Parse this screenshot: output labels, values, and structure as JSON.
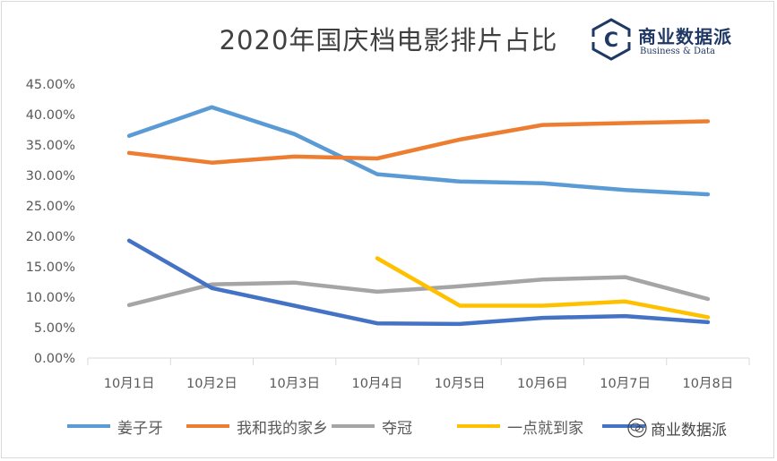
{
  "chart_data": {
    "type": "line",
    "title": "2020年国庆档电影排片占比",
    "categories": [
      "10月1日",
      "10月2日",
      "10月3日",
      "10月4日",
      "10月5日",
      "10月6日",
      "10月7日",
      "10月8日"
    ],
    "y_ticks": [
      "0.00%",
      "5.00%",
      "10.00%",
      "15.00%",
      "20.00%",
      "25.00%",
      "30.00%",
      "35.00%",
      "40.00%",
      "45.00%"
    ],
    "ylim": [
      0,
      45
    ],
    "grid": false,
    "legend_position": "bottom",
    "series": [
      {
        "name": "姜子牙",
        "color": "#5b9bd5",
        "values": [
          36.5,
          41.2,
          36.8,
          30.2,
          29.0,
          28.7,
          27.6,
          26.9
        ]
      },
      {
        "name": "我和我的家乡",
        "color": "#ed7d31",
        "values": [
          33.7,
          32.1,
          33.1,
          32.8,
          35.9,
          38.3,
          38.6,
          38.9
        ]
      },
      {
        "name": "夺冠",
        "color": "#a5a5a5",
        "values": [
          8.7,
          12.1,
          12.4,
          10.9,
          11.8,
          12.9,
          13.3,
          9.7
        ]
      },
      {
        "name": "一点就到家",
        "color": "#ffc000",
        "values": [
          null,
          null,
          null,
          16.4,
          8.6,
          8.6,
          9.3,
          6.7
        ]
      },
      {
        "name": "",
        "color": "#4472c4",
        "values": [
          19.3,
          11.5,
          8.6,
          5.7,
          5.6,
          6.6,
          6.9,
          5.9
        ]
      }
    ]
  },
  "logo": {
    "icon": "hexagon-c-icon",
    "letter": "C",
    "name_cn": "商业数据派",
    "name_en": "Business & Data"
  },
  "watermark": {
    "icon": "wechat-icon",
    "text": "商业数据派"
  },
  "colors": {
    "axis": "#d9d9d9",
    "text": "#595959",
    "brand": "#1f3864"
  }
}
